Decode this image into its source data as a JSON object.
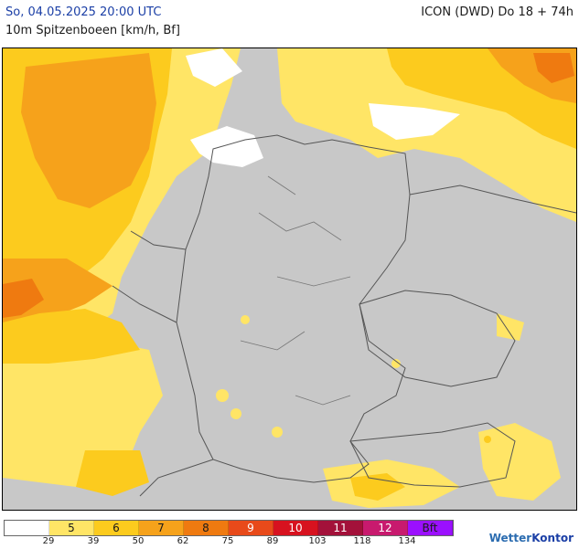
{
  "header": {
    "date": "So, 04.05.2025 20:00 UTC",
    "model": "ICON (DWD) Do 18 + 74h",
    "parameter": "10m Spitzenboeen [km/h, Bf]"
  },
  "legend": {
    "classes": [
      {
        "label": "",
        "color": "#ffffff"
      },
      {
        "label": "5",
        "color": "#ffe566"
      },
      {
        "label": "6",
        "color": "#fccb1e"
      },
      {
        "label": "7",
        "color": "#f6a21b"
      },
      {
        "label": "8",
        "color": "#ef7a10"
      },
      {
        "label": "9",
        "color": "#e84a1a"
      },
      {
        "label": "10",
        "color": "#d7121f"
      },
      {
        "label": "11",
        "color": "#a3113a"
      },
      {
        "label": "12",
        "color": "#c81a6e"
      },
      {
        "label": "Bft",
        "color": "#9b10ff"
      }
    ],
    "thresholds": [
      "29",
      "39",
      "50",
      "62",
      "75",
      "89",
      "103",
      "118",
      "134"
    ]
  },
  "brand": {
    "name_a": "Wetter",
    "name_b": "Kontor"
  },
  "colors": {
    "land": "#c8c8c8",
    "water_calm": "#ffffff",
    "bf5": "#ffe566",
    "bf6": "#fccb1e",
    "bf7": "#f6a21b",
    "bf8": "#ef7a10",
    "border": "#555555"
  }
}
